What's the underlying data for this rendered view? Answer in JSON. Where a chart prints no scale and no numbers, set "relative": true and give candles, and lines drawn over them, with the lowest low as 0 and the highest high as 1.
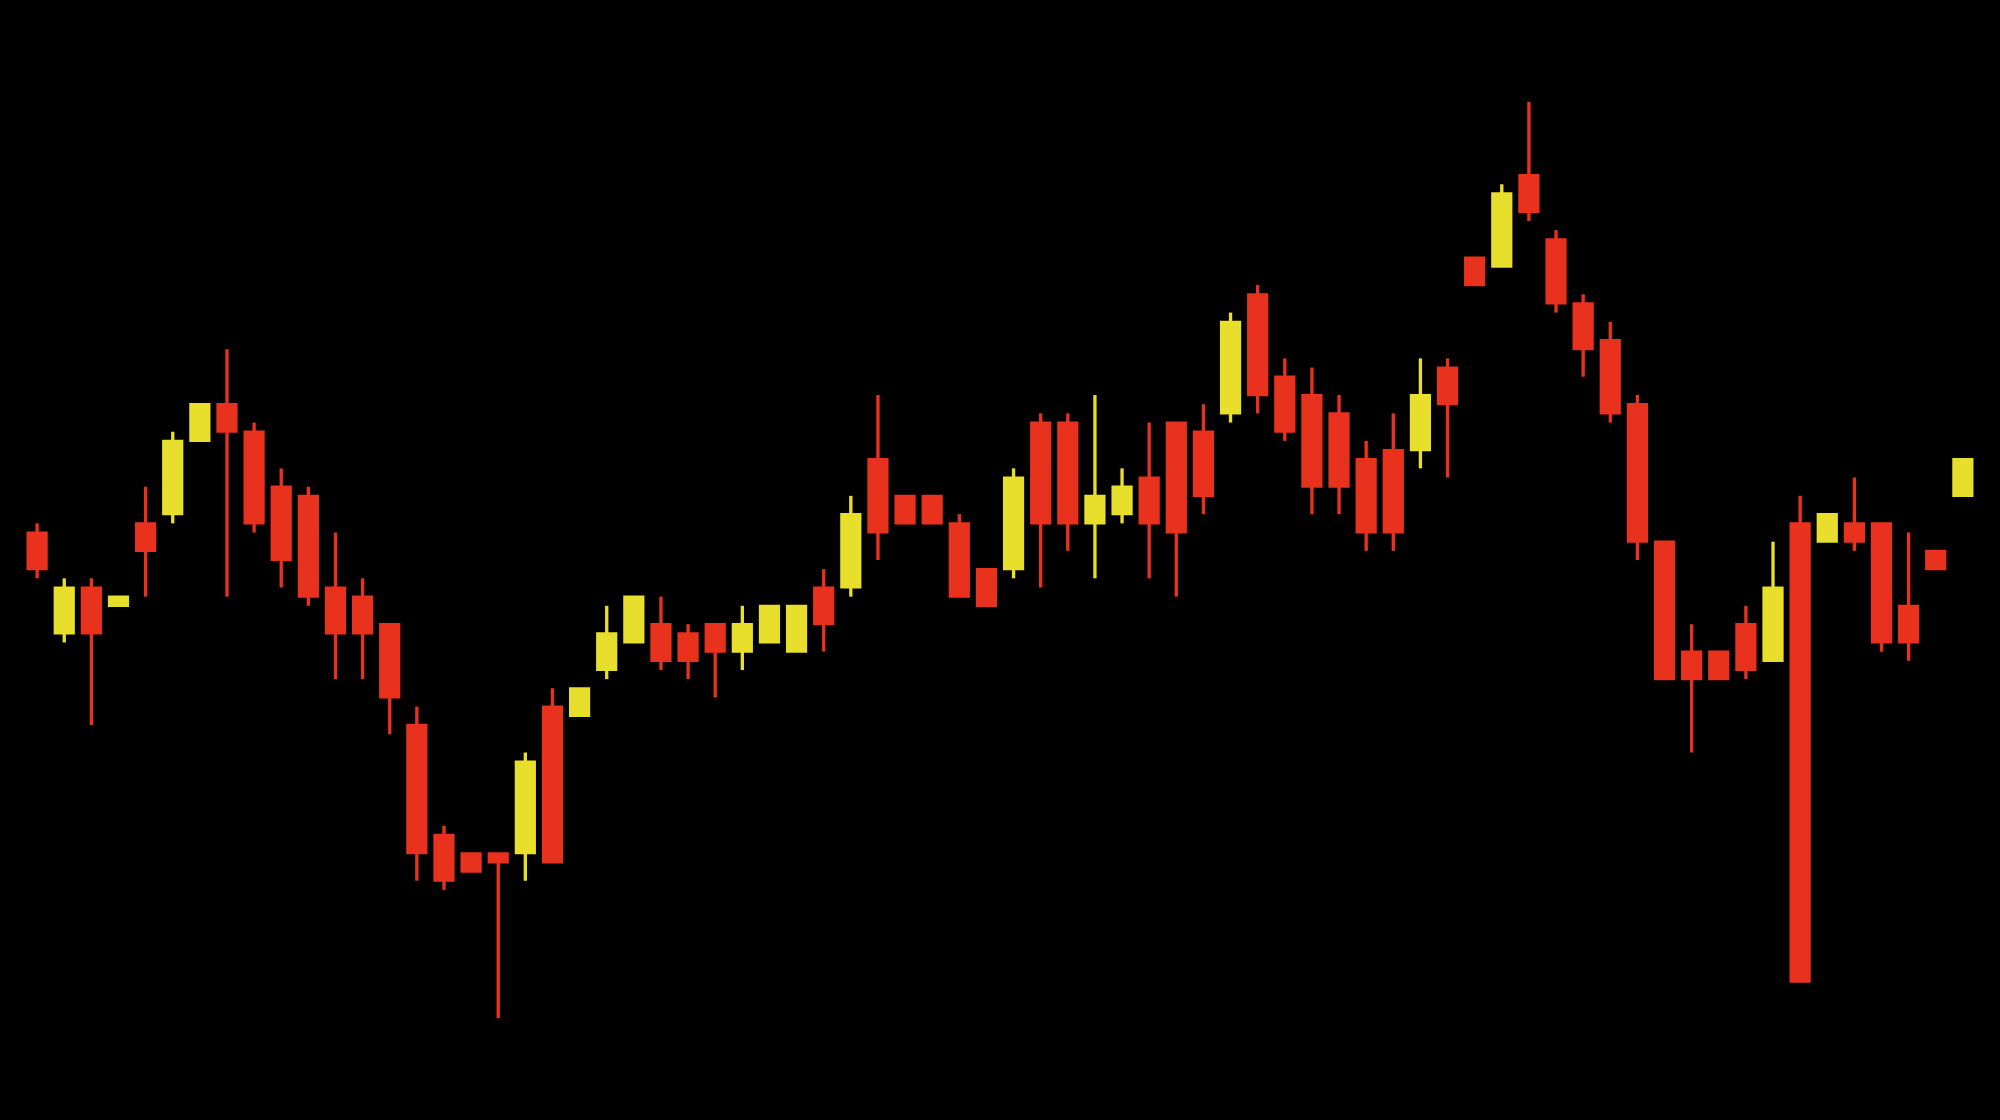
{
  "chart_data": {
    "type": "candlestick",
    "relative": true,
    "categories": [
      null,
      null,
      null,
      null,
      null,
      null,
      null,
      null,
      null,
      null,
      null,
      null,
      null,
      null,
      null,
      null,
      null,
      null,
      null,
      null,
      null,
      null,
      null,
      null,
      null,
      null,
      null,
      null,
      null,
      null,
      null,
      null,
      null,
      null,
      null,
      null,
      null,
      null,
      null,
      null,
      null,
      null,
      null,
      null,
      null,
      null,
      null,
      null,
      null,
      null,
      null,
      null,
      null,
      null,
      null,
      null,
      null,
      null,
      null,
      null,
      null,
      null,
      null,
      null,
      null,
      null,
      null,
      null,
      null,
      null,
      null,
      null
    ],
    "ohlc": [
      [
        0.53,
        0.54,
        0.48,
        0.49
      ],
      [
        0.42,
        0.48,
        0.41,
        0.47
      ],
      [
        0.47,
        0.48,
        0.32,
        0.42
      ],
      [
        0.45,
        0.46,
        0.45,
        0.46
      ],
      [
        0.54,
        0.58,
        0.46,
        0.51
      ],
      [
        0.55,
        0.64,
        0.54,
        0.63
      ],
      [
        0.63,
        0.67,
        0.63,
        0.67
      ],
      [
        0.67,
        0.73,
        0.46,
        0.64
      ],
      [
        0.64,
        0.65,
        0.53,
        0.54
      ],
      [
        0.58,
        0.6,
        0.47,
        0.5
      ],
      [
        0.57,
        0.58,
        0.45,
        0.46
      ],
      [
        0.47,
        0.53,
        0.37,
        0.42
      ],
      [
        0.46,
        0.48,
        0.37,
        0.42
      ],
      [
        0.43,
        0.43,
        0.31,
        0.35
      ],
      [
        0.32,
        0.34,
        0.15,
        0.18
      ],
      [
        0.2,
        0.21,
        0.14,
        0.15
      ],
      [
        0.18,
        0.18,
        0.16,
        0.16
      ],
      [
        0.18,
        0.18,
        0.0,
        0.17
      ],
      [
        0.18,
        0.29,
        0.15,
        0.28
      ],
      [
        0.34,
        0.36,
        0.17,
        0.17
      ],
      [
        0.33,
        0.36,
        0.33,
        0.36
      ],
      [
        0.38,
        0.45,
        0.37,
        0.42
      ],
      [
        0.41,
        0.46,
        0.41,
        0.46
      ],
      [
        0.43,
        0.46,
        0.38,
        0.39
      ],
      [
        0.42,
        0.43,
        0.37,
        0.39
      ],
      [
        0.43,
        0.43,
        0.35,
        0.4
      ],
      [
        0.4,
        0.45,
        0.38,
        0.43
      ],
      [
        0.41,
        0.45,
        0.41,
        0.45
      ],
      [
        0.4,
        0.45,
        0.4,
        0.45
      ],
      [
        0.47,
        0.49,
        0.4,
        0.43
      ],
      [
        0.47,
        0.57,
        0.46,
        0.55
      ],
      [
        0.61,
        0.68,
        0.5,
        0.53
      ],
      [
        0.57,
        0.57,
        0.54,
        0.54
      ],
      [
        0.57,
        0.57,
        0.54,
        0.54
      ],
      [
        0.54,
        0.55,
        0.46,
        0.46
      ],
      [
        0.49,
        0.49,
        0.45,
        0.45
      ],
      [
        0.49,
        0.6,
        0.48,
        0.59
      ],
      [
        0.65,
        0.66,
        0.47,
        0.54
      ],
      [
        0.65,
        0.66,
        0.51,
        0.54
      ],
      [
        0.54,
        0.68,
        0.48,
        0.57
      ],
      [
        0.55,
        0.6,
        0.54,
        0.58
      ],
      [
        0.59,
        0.65,
        0.48,
        0.54
      ],
      [
        0.65,
        0.65,
        0.46,
        0.53
      ],
      [
        0.64,
        0.67,
        0.55,
        0.57
      ],
      [
        0.66,
        0.77,
        0.65,
        0.76
      ],
      [
        0.79,
        0.8,
        0.66,
        0.68
      ],
      [
        0.7,
        0.72,
        0.63,
        0.64
      ],
      [
        0.68,
        0.71,
        0.55,
        0.58
      ],
      [
        0.66,
        0.68,
        0.55,
        0.58
      ],
      [
        0.61,
        0.63,
        0.51,
        0.53
      ],
      [
        0.62,
        0.66,
        0.51,
        0.53
      ],
      [
        0.62,
        0.72,
        0.6,
        0.68
      ],
      [
        0.71,
        0.72,
        0.59,
        0.67
      ],
      [
        0.83,
        0.83,
        0.8,
        0.8
      ],
      [
        0.82,
        0.91,
        0.82,
        0.9
      ],
      [
        0.92,
        1.0,
        0.87,
        0.88
      ],
      [
        0.85,
        0.86,
        0.77,
        0.78
      ],
      [
        0.78,
        0.79,
        0.7,
        0.73
      ],
      [
        0.74,
        0.76,
        0.65,
        0.66
      ],
      [
        0.67,
        0.68,
        0.5,
        0.52
      ],
      [
        0.52,
        0.52,
        0.37,
        0.37
      ],
      [
        0.4,
        0.43,
        0.29,
        0.37
      ],
      [
        0.4,
        0.4,
        0.37,
        0.37
      ],
      [
        0.43,
        0.45,
        0.37,
        0.38
      ],
      [
        0.39,
        0.52,
        0.39,
        0.47
      ],
      [
        0.54,
        0.57,
        0.04,
        0.04
      ],
      [
        0.52,
        0.55,
        0.52,
        0.55
      ],
      [
        0.54,
        0.59,
        0.51,
        0.52
      ],
      [
        0.54,
        0.54,
        0.4,
        0.41
      ],
      [
        0.45,
        0.53,
        0.39,
        0.41
      ],
      [
        0.51,
        0.51,
        0.49,
        0.49
      ],
      [
        0.57,
        0.61,
        0.57,
        0.61
      ]
    ],
    "colors": [
      "#e8321e",
      "#e8df2c",
      "#e8321e",
      "#e8df2c",
      "#e8321e",
      "#e8df2c",
      "#e8df2c",
      "#e8321e",
      "#e8321e",
      "#e8321e",
      "#e8321e",
      "#e8321e",
      "#e8321e",
      "#e8321e",
      "#e8321e",
      "#e8321e",
      "#e8321e",
      "#e8321e",
      "#e8df2c",
      "#e8321e",
      "#e8df2c",
      "#e8df2c",
      "#e8df2c",
      "#e8321e",
      "#e8321e",
      "#e8321e",
      "#e8df2c",
      "#e8df2c",
      "#e8df2c",
      "#e8321e",
      "#e8df2c",
      "#e8321e",
      "#e8321e",
      "#e8321e",
      "#e8321e",
      "#e8321e",
      "#e8df2c",
      "#e8321e",
      "#e8321e",
      "#e8df2c",
      "#e8df2c",
      "#e8321e",
      "#e8321e",
      "#e8321e",
      "#e8df2c",
      "#e8321e",
      "#e8321e",
      "#e8321e",
      "#e8321e",
      "#e8321e",
      "#e8321e",
      "#e8df2c",
      "#e8321e",
      "#e8321e",
      "#e8df2c",
      "#e8321e",
      "#e8321e",
      "#e8321e",
      "#e8321e",
      "#e8321e",
      "#e8321e",
      "#e8321e",
      "#e8321e",
      "#e8321e",
      "#e8df2c",
      "#e8321e",
      "#e8df2c",
      "#e8321e",
      "#e8321e",
      "#e8321e",
      "#e8321e",
      "#e8df2c"
    ]
  }
}
